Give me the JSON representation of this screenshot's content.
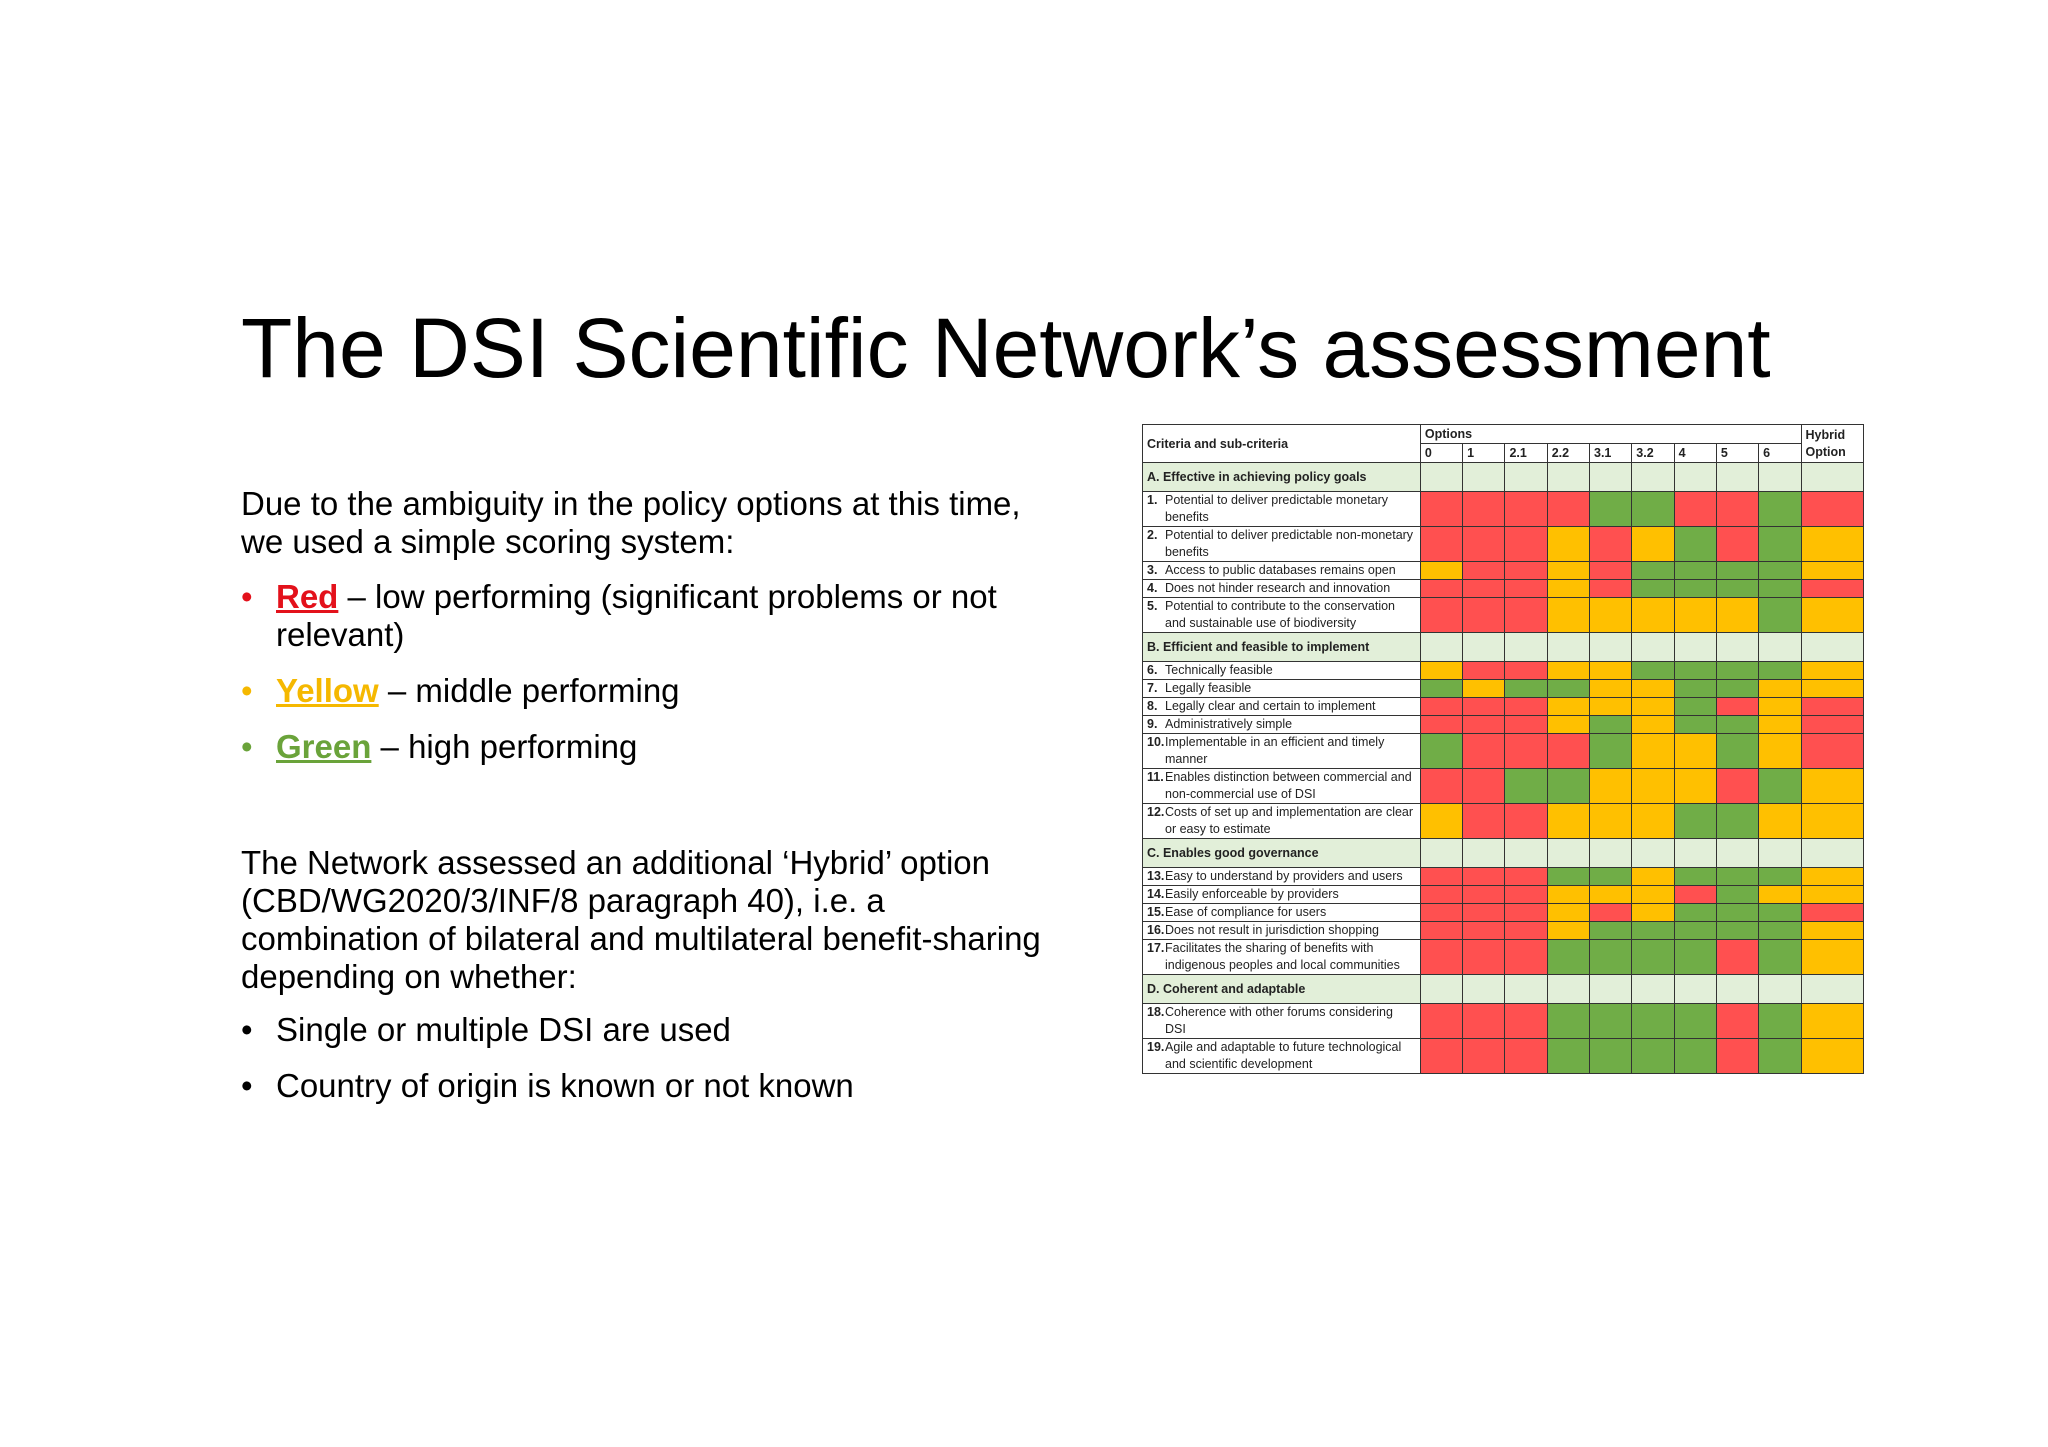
{
  "title": "The DSI Scientific Network’s assessment",
  "intro": "Due to the ambiguity in the policy options at this time, we used a simple scoring system:",
  "scoring": [
    {
      "key": "Red",
      "rest": " – low performing (significant problems or not relevant)"
    },
    {
      "key": "Yellow",
      "rest": " – middle performing"
    },
    {
      "key": "Green",
      "rest": " – high performing"
    }
  ],
  "network_text": "The Network assessed an additional ‘Hybrid’ option (CBD/WG2020/3/INF/8 paragraph 40), i.e. a combination of bilateral and multilateral benefit-sharing depending on whether:",
  "network_bullets": [
    "Single or multiple DSI are used",
    "Country of origin is known or not known"
  ],
  "colors": {
    "red": "#ff5050",
    "yellow": "#ffc000",
    "green": "#70ad47",
    "section": "#e2efd9"
  },
  "table": {
    "header_criteria": "Criteria and sub-criteria",
    "header_options": "Options",
    "header_hybrid": "Hybrid Option",
    "options": [
      "0",
      "1",
      "2.1",
      "2.2",
      "3.1",
      "3.2",
      "4",
      "5",
      "6"
    ],
    "sections": [
      {
        "label": "A. Effective in achieving policy goals",
        "rows": [
          {
            "num": "1.",
            "text": "Potential to deliver predictable monetary benefits",
            "scores": "RRRRGGRRGR"
          },
          {
            "num": "2.",
            "text": "Potential to deliver predictable non-monetary benefits",
            "scores": "RRRYRYGRGY"
          },
          {
            "num": "3.",
            "text": "Access to public databases remains open",
            "scores": "YRRYRGGGGY"
          },
          {
            "num": "4.",
            "text": "Does not hinder research and innovation",
            "scores": "RRRYRGGGGR"
          },
          {
            "num": "5.",
            "text": "Potential to contribute to the conservation and sustainable use of biodiversity",
            "scores": "RRRYYYYYGY"
          }
        ]
      },
      {
        "label": "B. Efficient and feasible to implement",
        "rows": [
          {
            "num": "6.",
            "text": "Technically feasible",
            "scores": "YRRYYGGGGY"
          },
          {
            "num": "7.",
            "text": "Legally feasible",
            "scores": "GYGGYYGGYY"
          },
          {
            "num": "8.",
            "text": "Legally clear and certain to implement",
            "scores": "RRRYYYGRYR"
          },
          {
            "num": "9.",
            "text": "Administratively simple",
            "scores": "RRRYGYGGYR"
          },
          {
            "num": "10.",
            "text": "Implementable in an efficient and timely manner",
            "scores": "GRRRGYYGYR"
          },
          {
            "num": "11.",
            "text": "Enables distinction between commercial and non-commercial use of DSI",
            "scores": "RRGGYYYRGY"
          },
          {
            "num": "12.",
            "text": "Costs of set up and implementation are clear or easy to estimate",
            "scores": "YRRYYYGGYY"
          }
        ]
      },
      {
        "label": "C. Enables good governance",
        "rows": [
          {
            "num": "13.",
            "text": "Easy to understand by providers and users",
            "scores": "RRRGGYGGGY"
          },
          {
            "num": "14.",
            "text": "Easily enforceable by providers",
            "scores": "RRRYYYRGYY"
          },
          {
            "num": "15.",
            "text": "Ease of compliance for users",
            "scores": "RRRYRYGGGR"
          },
          {
            "num": "16.",
            "text": "Does not result in jurisdiction shopping",
            "scores": "RRRYGGGGGY"
          },
          {
            "num": "17.",
            "text": "Facilitates the sharing of benefits with indigenous peoples and local communities",
            "scores": "RRRGGGGRGY"
          }
        ]
      },
      {
        "label": "D. Coherent and adaptable",
        "rows": [
          {
            "num": "18.",
            "text": "Coherence with other forums considering DSI",
            "scores": "RRRGGGGRGY"
          },
          {
            "num": "19.",
            "text": "Agile and adaptable to future technological and scientific development",
            "scores": "RRRGGGGRGY"
          }
        ]
      }
    ]
  }
}
